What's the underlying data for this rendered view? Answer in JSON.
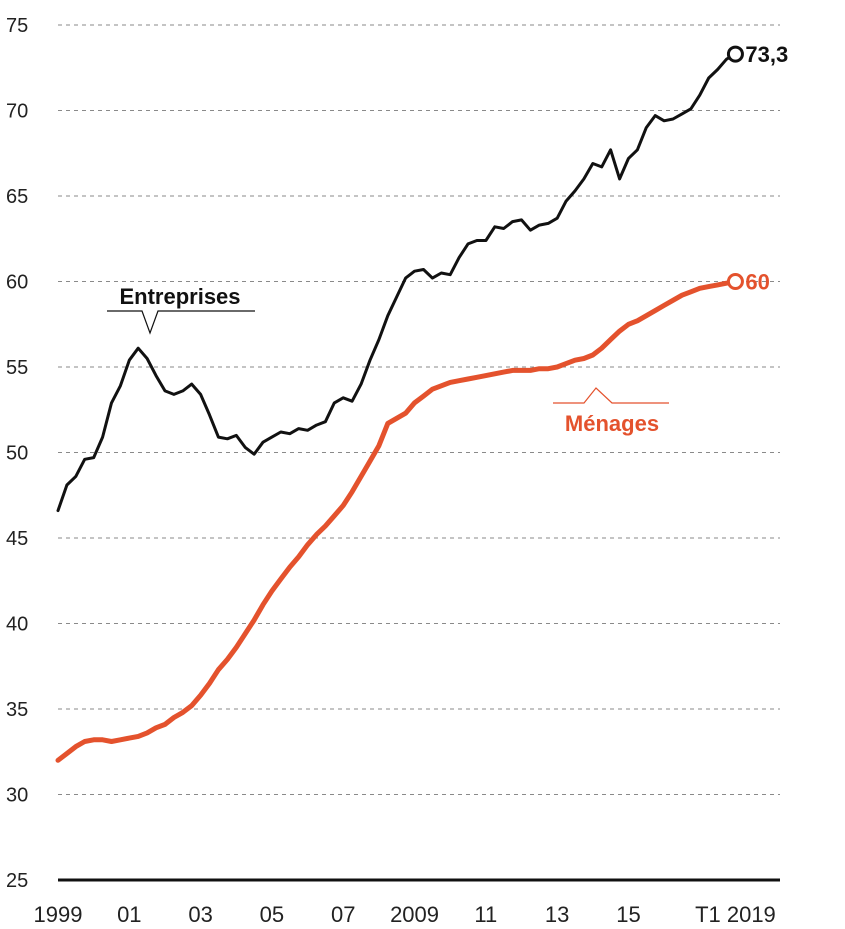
{
  "chart_data": {
    "type": "line",
    "x_tick_labels": [
      "1999",
      "01",
      "03",
      "05",
      "07",
      "2009",
      "11",
      "13",
      "15",
      "T1 2019"
    ],
    "x_tick_positions": [
      1999,
      2001,
      2003,
      2005,
      2007,
      2009,
      2011,
      2013,
      2015,
      2018.0
    ],
    "xlim": [
      1999,
      2019.25
    ],
    "y_ticks": [
      25,
      30,
      35,
      40,
      45,
      50,
      55,
      60,
      65,
      70,
      75
    ],
    "ylim": [
      25,
      75
    ],
    "grid": true,
    "series": [
      {
        "name": "Entreprises",
        "color": "#111111",
        "end_value_label": "73,3",
        "points": [
          [
            1999.0,
            46.6
          ],
          [
            1999.25,
            48.1
          ],
          [
            1999.5,
            48.6
          ],
          [
            1999.75,
            49.6
          ],
          [
            2000.0,
            49.7
          ],
          [
            2000.25,
            50.9
          ],
          [
            2000.5,
            52.9
          ],
          [
            2000.75,
            53.9
          ],
          [
            2001.0,
            55.4
          ],
          [
            2001.25,
            56.1
          ],
          [
            2001.5,
            55.5
          ],
          [
            2001.75,
            54.5
          ],
          [
            2002.0,
            53.6
          ],
          [
            2002.25,
            53.4
          ],
          [
            2002.5,
            53.6
          ],
          [
            2002.75,
            54.0
          ],
          [
            2003.0,
            53.4
          ],
          [
            2003.25,
            52.2
          ],
          [
            2003.5,
            50.9
          ],
          [
            2003.75,
            50.8
          ],
          [
            2004.0,
            51.0
          ],
          [
            2004.25,
            50.3
          ],
          [
            2004.5,
            49.9
          ],
          [
            2004.75,
            50.6
          ],
          [
            2005.0,
            50.9
          ],
          [
            2005.25,
            51.2
          ],
          [
            2005.5,
            51.1
          ],
          [
            2005.75,
            51.4
          ],
          [
            2006.0,
            51.3
          ],
          [
            2006.25,
            51.6
          ],
          [
            2006.5,
            51.8
          ],
          [
            2006.75,
            52.9
          ],
          [
            2007.0,
            53.2
          ],
          [
            2007.25,
            53.0
          ],
          [
            2007.5,
            54.0
          ],
          [
            2007.75,
            55.4
          ],
          [
            2008.0,
            56.6
          ],
          [
            2008.25,
            58.0
          ],
          [
            2008.5,
            59.1
          ],
          [
            2008.75,
            60.2
          ],
          [
            2009.0,
            60.6
          ],
          [
            2009.25,
            60.7
          ],
          [
            2009.5,
            60.2
          ],
          [
            2009.75,
            60.5
          ],
          [
            2010.0,
            60.4
          ],
          [
            2010.25,
            61.4
          ],
          [
            2010.5,
            62.2
          ],
          [
            2010.75,
            62.4
          ],
          [
            2011.0,
            62.4
          ],
          [
            2011.25,
            63.2
          ],
          [
            2011.5,
            63.1
          ],
          [
            2011.75,
            63.5
          ],
          [
            2012.0,
            63.6
          ],
          [
            2012.25,
            63.0
          ],
          [
            2012.5,
            63.3
          ],
          [
            2012.75,
            63.4
          ],
          [
            2013.0,
            63.7
          ],
          [
            2013.25,
            64.7
          ],
          [
            2013.5,
            65.3
          ],
          [
            2013.75,
            66.0
          ],
          [
            2014.0,
            66.9
          ],
          [
            2014.25,
            66.7
          ],
          [
            2014.5,
            67.7
          ],
          [
            2014.75,
            66.0
          ],
          [
            2015.0,
            67.2
          ],
          [
            2015.25,
            67.7
          ],
          [
            2015.5,
            69.0
          ],
          [
            2015.75,
            69.7
          ],
          [
            2016.0,
            69.4
          ],
          [
            2016.25,
            69.5
          ],
          [
            2016.5,
            69.8
          ],
          [
            2016.75,
            70.1
          ],
          [
            2017.0,
            70.9
          ],
          [
            2017.25,
            71.9
          ],
          [
            2017.5,
            72.4
          ],
          [
            2017.75,
            73.0
          ],
          [
            2018.0,
            73.3
          ]
        ]
      },
      {
        "name": "Ménages",
        "color": "#e4522d",
        "end_value_label": "60",
        "points": [
          [
            1999.0,
            32.0
          ],
          [
            1999.25,
            32.4
          ],
          [
            1999.5,
            32.8
          ],
          [
            1999.75,
            33.1
          ],
          [
            2000.0,
            33.2
          ],
          [
            2000.25,
            33.2
          ],
          [
            2000.5,
            33.1
          ],
          [
            2000.75,
            33.2
          ],
          [
            2001.0,
            33.3
          ],
          [
            2001.25,
            33.4
          ],
          [
            2001.5,
            33.6
          ],
          [
            2001.75,
            33.9
          ],
          [
            2002.0,
            34.1
          ],
          [
            2002.25,
            34.5
          ],
          [
            2002.5,
            34.8
          ],
          [
            2002.75,
            35.2
          ],
          [
            2003.0,
            35.8
          ],
          [
            2003.25,
            36.5
          ],
          [
            2003.5,
            37.3
          ],
          [
            2003.75,
            37.9
          ],
          [
            2004.0,
            38.6
          ],
          [
            2004.25,
            39.4
          ],
          [
            2004.5,
            40.2
          ],
          [
            2004.75,
            41.1
          ],
          [
            2005.0,
            41.9
          ],
          [
            2005.25,
            42.6
          ],
          [
            2005.5,
            43.3
          ],
          [
            2005.75,
            43.9
          ],
          [
            2006.0,
            44.6
          ],
          [
            2006.25,
            45.2
          ],
          [
            2006.5,
            45.7
          ],
          [
            2006.75,
            46.3
          ],
          [
            2007.0,
            46.9
          ],
          [
            2007.25,
            47.7
          ],
          [
            2007.5,
            48.6
          ],
          [
            2007.75,
            49.5
          ],
          [
            2008.0,
            50.4
          ],
          [
            2008.25,
            51.7
          ],
          [
            2008.5,
            52.0
          ],
          [
            2008.75,
            52.3
          ],
          [
            2009.0,
            52.9
          ],
          [
            2009.25,
            53.3
          ],
          [
            2009.5,
            53.7
          ],
          [
            2009.75,
            53.9
          ],
          [
            2010.0,
            54.1
          ],
          [
            2010.25,
            54.2
          ],
          [
            2010.5,
            54.3
          ],
          [
            2010.75,
            54.4
          ],
          [
            2011.0,
            54.5
          ],
          [
            2011.25,
            54.6
          ],
          [
            2011.5,
            54.7
          ],
          [
            2011.75,
            54.8
          ],
          [
            2012.0,
            54.8
          ],
          [
            2012.25,
            54.8
          ],
          [
            2012.5,
            54.9
          ],
          [
            2012.75,
            54.9
          ],
          [
            2013.0,
            55.0
          ],
          [
            2013.25,
            55.2
          ],
          [
            2013.5,
            55.4
          ],
          [
            2013.75,
            55.5
          ],
          [
            2014.0,
            55.7
          ],
          [
            2014.25,
            56.1
          ],
          [
            2014.5,
            56.6
          ],
          [
            2014.75,
            57.1
          ],
          [
            2015.0,
            57.5
          ],
          [
            2015.25,
            57.7
          ],
          [
            2015.5,
            58.0
          ],
          [
            2015.75,
            58.3
          ],
          [
            2016.0,
            58.6
          ],
          [
            2016.25,
            58.9
          ],
          [
            2016.5,
            59.2
          ],
          [
            2016.75,
            59.4
          ],
          [
            2017.0,
            59.6
          ],
          [
            2017.25,
            59.7
          ],
          [
            2017.5,
            59.8
          ],
          [
            2017.75,
            59.9
          ],
          [
            2018.0,
            60.0
          ]
        ]
      }
    ]
  }
}
